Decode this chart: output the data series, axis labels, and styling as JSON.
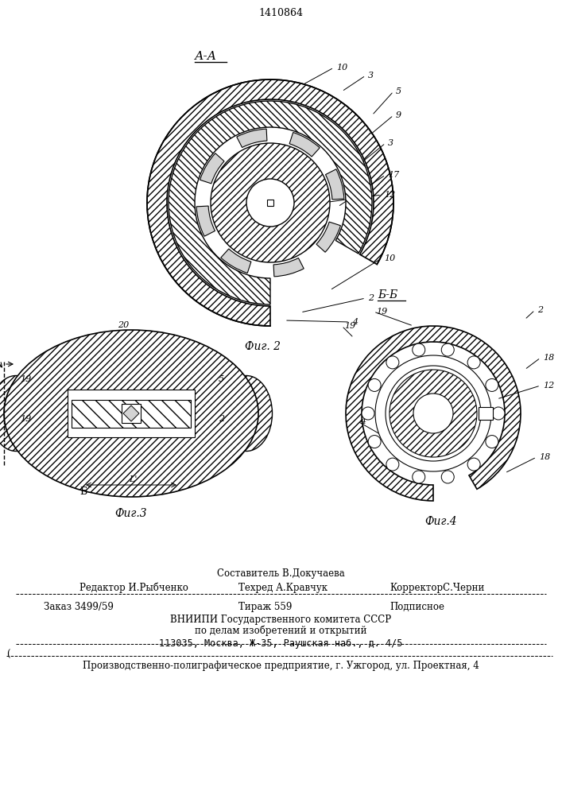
{
  "patent_number": "1410864",
  "fig2_label": "А-А",
  "fig2_caption": "Фиг. 2",
  "fig3_caption": "Фиг.3",
  "fig4_caption": "Фиг.4",
  "fig4_section": "Б-Б",
  "fig3_section": "Б",
  "bg_color": "#ffffff",
  "line_color": "#000000",
  "hatch_color": "#000000",
  "footer_lines": [
    "Составитель В.Докучаева",
    "Редактор И.Рыбченко        Техред А.Кравчук        КорректорС.Черни",
    "Заказ 3499/59              Тираж 559               Подписное",
    "ВНИИПИ Государственного комитета СССР",
    "по делам изобретений и открытий",
    "113035, Москва, Ж-35, Раушская наб., д. 4/5",
    "Производственно-полиграфическое предприятие, г. Ужгород, ул. Проектная, 4"
  ]
}
